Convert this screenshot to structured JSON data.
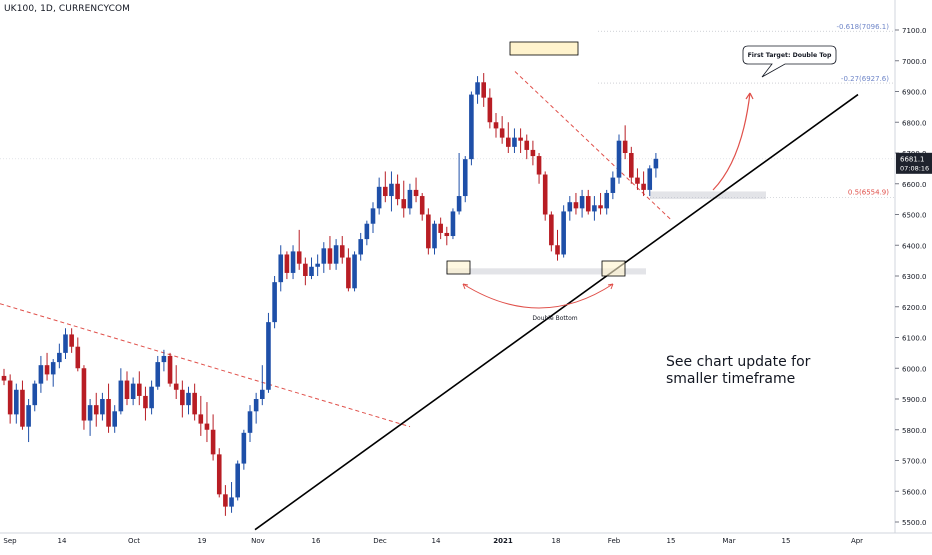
{
  "header": {
    "symbol_line": "UK100, 1D, CURRENCYCOM"
  },
  "axis": {
    "y_ticks": [
      "7100.0",
      "7000.0",
      "6900.0",
      "6800.0",
      "6700.0",
      "6600.0",
      "6500.0",
      "6400.0",
      "6300.0",
      "6200.0",
      "6100.0",
      "6000.0",
      "5900.0",
      "5800.0",
      "5700.0",
      "5600.0",
      "5500.0"
    ],
    "x_ticks": [
      "Sep",
      "14",
      "Oct",
      "19",
      "Nov",
      "16",
      "Dec",
      "14",
      "2021",
      "18",
      "Feb",
      "15",
      "Mar",
      "15",
      "Apr"
    ],
    "price_badge": {
      "price": "6681.1",
      "countdown": "07:08:16"
    }
  },
  "fib_labels": {
    "f618": "-0.618(7096.1)",
    "f027": "-0.27(6927.6)",
    "f05": "0.5(6554.9)"
  },
  "annotations": {
    "callout": "First Target: Double Top",
    "double_bottom": "Double Bottom",
    "note_line1": "See chart update for",
    "note_line2": "smaller timeframe"
  },
  "colors": {
    "up": "#1e4fa8",
    "down": "#b81d24",
    "trend_dash": "#e0504a",
    "trendline": "#000000",
    "arrow": "#e0504a",
    "fib_blue": "#6f86c8",
    "fib_red": "#e0504a"
  },
  "chart_data": {
    "type": "candlestick",
    "title": "UK100, 1D, CURRENCYCOM",
    "y_range": [
      5480,
      7160
    ],
    "ohlc": [
      [
        5975,
        5998,
        5945,
        5960
      ],
      [
        5960,
        5980,
        5820,
        5850
      ],
      [
        5850,
        5950,
        5820,
        5930
      ],
      [
        5930,
        5960,
        5800,
        5810
      ],
      [
        5810,
        5900,
        5760,
        5880
      ],
      [
        5880,
        5960,
        5860,
        5950
      ],
      [
        5950,
        6040,
        5920,
        6010
      ],
      [
        6010,
        6050,
        5960,
        5980
      ],
      [
        5980,
        6030,
        5940,
        6020
      ],
      [
        6020,
        6080,
        6000,
        6050
      ],
      [
        6050,
        6130,
        6030,
        6110
      ],
      [
        6110,
        6130,
        6050,
        6070
      ],
      [
        6070,
        6100,
        5990,
        6000
      ],
      [
        6000,
        6010,
        5800,
        5830
      ],
      [
        5830,
        5900,
        5780,
        5880
      ],
      [
        5880,
        5920,
        5810,
        5850
      ],
      [
        5850,
        5920,
        5830,
        5900
      ],
      [
        5900,
        5950,
        5790,
        5810
      ],
      [
        5810,
        5880,
        5790,
        5860
      ],
      [
        5860,
        6000,
        5850,
        5960
      ],
      [
        5960,
        5990,
        5880,
        5900
      ],
      [
        5900,
        5970,
        5880,
        5950
      ],
      [
        5950,
        5990,
        5880,
        5910
      ],
      [
        5910,
        5940,
        5830,
        5870
      ],
      [
        5870,
        5960,
        5850,
        5940
      ],
      [
        5940,
        6040,
        5930,
        6020
      ],
      [
        6020,
        6060,
        5990,
        6040
      ],
      [
        6040,
        6050,
        5940,
        5950
      ],
      [
        5950,
        6010,
        5900,
        5930
      ],
      [
        5930,
        5960,
        5840,
        5880
      ],
      [
        5880,
        5940,
        5850,
        5920
      ],
      [
        5920,
        5950,
        5830,
        5850
      ],
      [
        5850,
        5910,
        5780,
        5820
      ],
      [
        5820,
        5890,
        5760,
        5800
      ],
      [
        5800,
        5850,
        5700,
        5720
      ],
      [
        5720,
        5740,
        5580,
        5590
      ],
      [
        5590,
        5620,
        5520,
        5550
      ],
      [
        5550,
        5630,
        5530,
        5580
      ],
      [
        5580,
        5700,
        5570,
        5690
      ],
      [
        5690,
        5800,
        5670,
        5790
      ],
      [
        5790,
        5880,
        5760,
        5860
      ],
      [
        5860,
        5920,
        5820,
        5900
      ],
      [
        5900,
        6010,
        5880,
        5930
      ],
      [
        5930,
        6180,
        5920,
        6150
      ],
      [
        6150,
        6300,
        6130,
        6280
      ],
      [
        6280,
        6400,
        6250,
        6370
      ],
      [
        6370,
        6380,
        6290,
        6310
      ],
      [
        6310,
        6400,
        6290,
        6380
      ],
      [
        6380,
        6450,
        6320,
        6340
      ],
      [
        6340,
        6360,
        6270,
        6300
      ],
      [
        6300,
        6360,
        6290,
        6330
      ],
      [
        6330,
        6370,
        6300,
        6340
      ],
      [
        6340,
        6410,
        6310,
        6390
      ],
      [
        6390,
        6430,
        6320,
        6340
      ],
      [
        6340,
        6420,
        6320,
        6400
      ],
      [
        6400,
        6430,
        6340,
        6360
      ],
      [
        6360,
        6390,
        6250,
        6260
      ],
      [
        6260,
        6380,
        6250,
        6370
      ],
      [
        6370,
        6440,
        6350,
        6420
      ],
      [
        6420,
        6480,
        6400,
        6470
      ],
      [
        6470,
        6540,
        6440,
        6520
      ],
      [
        6520,
        6620,
        6500,
        6590
      ],
      [
        6590,
        6640,
        6540,
        6560
      ],
      [
        6560,
        6640,
        6510,
        6600
      ],
      [
        6600,
        6630,
        6530,
        6550
      ],
      [
        6550,
        6610,
        6490,
        6520
      ],
      [
        6520,
        6600,
        6500,
        6580
      ],
      [
        6580,
        6620,
        6540,
        6560
      ],
      [
        6560,
        6570,
        6480,
        6500
      ],
      [
        6500,
        6520,
        6370,
        6390
      ],
      [
        6390,
        6480,
        6370,
        6470
      ],
      [
        6470,
        6490,
        6420,
        6440
      ],
      [
        6440,
        6460,
        6400,
        6430
      ],
      [
        6430,
        6520,
        6420,
        6510
      ],
      [
        6510,
        6700,
        6500,
        6560
      ],
      [
        6560,
        6690,
        6540,
        6680
      ],
      [
        6680,
        6900,
        6660,
        6890
      ],
      [
        6890,
        6950,
        6860,
        6930
      ],
      [
        6930,
        6960,
        6850,
        6880
      ],
      [
        6880,
        6910,
        6780,
        6800
      ],
      [
        6800,
        6830,
        6750,
        6780
      ],
      [
        6780,
        6820,
        6730,
        6750
      ],
      [
        6750,
        6800,
        6700,
        6720
      ],
      [
        6720,
        6780,
        6700,
        6750
      ],
      [
        6750,
        6780,
        6700,
        6740
      ],
      [
        6740,
        6760,
        6680,
        6710
      ],
      [
        6710,
        6740,
        6660,
        6690
      ],
      [
        6690,
        6700,
        6600,
        6630
      ],
      [
        6630,
        6640,
        6480,
        6500
      ],
      [
        6500,
        6510,
        6380,
        6400
      ],
      [
        6400,
        6450,
        6350,
        6370
      ],
      [
        6370,
        6530,
        6360,
        6510
      ],
      [
        6510,
        6560,
        6480,
        6540
      ],
      [
        6540,
        6570,
        6500,
        6520
      ],
      [
        6520,
        6580,
        6490,
        6560
      ],
      [
        6560,
        6580,
        6500,
        6510
      ],
      [
        6510,
        6560,
        6480,
        6530
      ],
      [
        6530,
        6570,
        6500,
        6520
      ],
      [
        6520,
        6580,
        6500,
        6570
      ],
      [
        6570,
        6640,
        6550,
        6620
      ],
      [
        6620,
        6760,
        6600,
        6740
      ],
      [
        6740,
        6790,
        6680,
        6700
      ],
      [
        6700,
        6720,
        6600,
        6620
      ],
      [
        6620,
        6650,
        6580,
        6600
      ],
      [
        6600,
        6640,
        6560,
        6580
      ],
      [
        6580,
        6660,
        6560,
        6650
      ],
      [
        6650,
        6700,
        6620,
        6681
      ]
    ]
  }
}
